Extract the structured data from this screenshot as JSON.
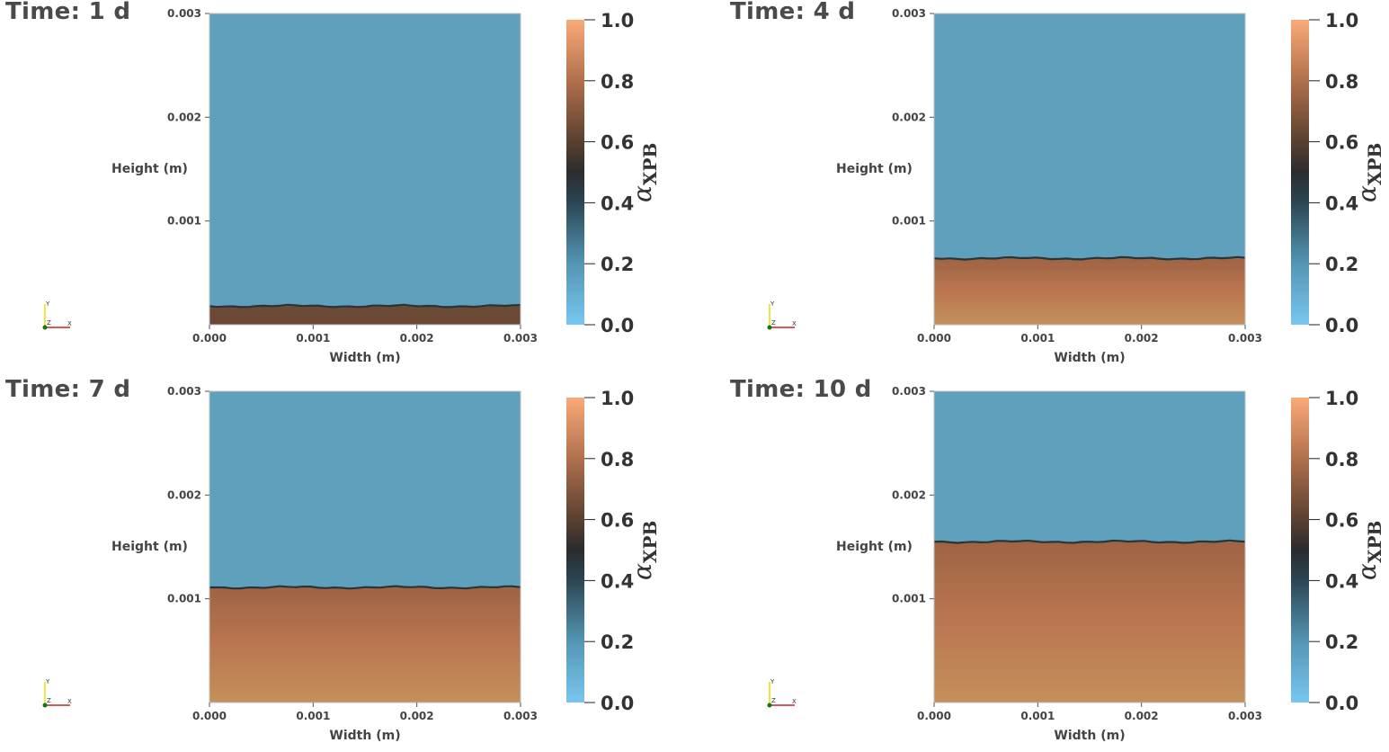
{
  "chart_data": [
    {
      "type": "heatmap",
      "title": "Time: 1 d",
      "xlabel": "Width (m)",
      "ylabel": "Height (m)",
      "xlim": [
        0.0,
        0.003
      ],
      "ylim": [
        0.0,
        0.003
      ],
      "xticks": [
        "0.000",
        "0.001",
        "0.002",
        "0.003"
      ],
      "yticks": [
        "0.001",
        "0.002",
        "0.003"
      ],
      "interface_height": 0.00018,
      "colorbar": {
        "label": "α",
        "label_sub": "XPB",
        "range": [
          0.0,
          1.0
        ],
        "ticks": [
          "0.0",
          "0.2",
          "0.4",
          "0.6",
          "0.8",
          "1.0"
        ]
      }
    },
    {
      "type": "heatmap",
      "title": "Time: 4 d",
      "xlabel": "Width (m)",
      "ylabel": "Height (m)",
      "xlim": [
        0.0,
        0.003
      ],
      "ylim": [
        0.0,
        0.003
      ],
      "xticks": [
        "0.000",
        "0.001",
        "0.002",
        "0.003"
      ],
      "yticks": [
        "0.001",
        "0.002",
        "0.003"
      ],
      "interface_height": 0.00064,
      "colorbar": {
        "label": "α",
        "label_sub": "XPB",
        "range": [
          0.0,
          1.0
        ],
        "ticks": [
          "0.0",
          "0.2",
          "0.4",
          "0.6",
          "0.8",
          "1.0"
        ]
      }
    },
    {
      "type": "heatmap",
      "title": "Time: 7 d",
      "xlabel": "Width (m)",
      "ylabel": "Height (m)",
      "xlim": [
        0.0,
        0.003
      ],
      "ylim": [
        0.0,
        0.003
      ],
      "xticks": [
        "0.000",
        "0.001",
        "0.002",
        "0.003"
      ],
      "yticks": [
        "0.001",
        "0.002",
        "0.003"
      ],
      "interface_height": 0.00111,
      "colorbar": {
        "label": "α",
        "label_sub": "XPB",
        "range": [
          0.0,
          1.0
        ],
        "ticks": [
          "0.0",
          "0.2",
          "0.4",
          "0.6",
          "0.8",
          "1.0"
        ]
      }
    },
    {
      "type": "heatmap",
      "title": "Time: 10 d",
      "xlabel": "Width (m)",
      "ylabel": "Height (m)",
      "xlim": [
        0.0,
        0.003
      ],
      "ylim": [
        0.0,
        0.003
      ],
      "xticks": [
        "0.000",
        "0.001",
        "0.002",
        "0.003"
      ],
      "yticks": [
        "0.001",
        "0.002",
        "0.003"
      ],
      "interface_height": 0.00155,
      "colorbar": {
        "label": "α",
        "label_sub": "XPB",
        "range": [
          0.0,
          1.0
        ],
        "ticks": [
          "0.0",
          "0.2",
          "0.4",
          "0.6",
          "0.8",
          "1.0"
        ]
      }
    }
  ],
  "colors": {
    "fluid": "#5fa1bd",
    "interface": "#2a3438",
    "frame": "#bfbfbf",
    "triad_y": "#e8e000",
    "triad_x": "#cc2222",
    "triad_origin": "#117711"
  },
  "orientation_axes": {
    "x": "X",
    "y": "Y",
    "z": "Z"
  }
}
